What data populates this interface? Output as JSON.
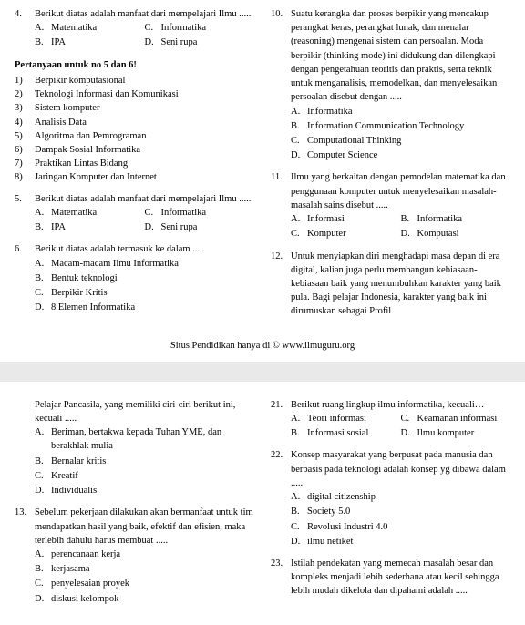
{
  "footer": "Situs Pendidikan hanya di © www.ilmuguru.org",
  "heading56": "Pertanyaan untuk no 5 dan 6!",
  "list56": [
    {
      "n": "1)",
      "t": "Berpikir komputasional"
    },
    {
      "n": "2)",
      "t": "Teknologi Informasi dan Komunikasi"
    },
    {
      "n": "3)",
      "t": "Sistem komputer"
    },
    {
      "n": "4)",
      "t": "Analisis Data"
    },
    {
      "n": "5)",
      "t": "Algoritma dan Pemrograman"
    },
    {
      "n": "6)",
      "t": "Dampak Sosial Informatika"
    },
    {
      "n": "7)",
      "t": "Praktikan Lintas Bidang"
    },
    {
      "n": "8)",
      "t": "Jaringan Komputer dan Internet"
    }
  ],
  "q4": {
    "num": "4.",
    "stem": "Berikut diatas adalah manfaat dari mempelajari Ilmu .....",
    "a": "Matematika",
    "b": "IPA",
    "c": "Informatika",
    "d": "Seni rupa"
  },
  "q5": {
    "num": "5.",
    "stem": "Berikut diatas adalah manfaat dari mempelajari Ilmu .....",
    "a": "Matematika",
    "b": "IPA",
    "c": "Informatika",
    "d": "Seni rupa"
  },
  "q6": {
    "num": "6.",
    "stem": "Berikut diatas adalah termasuk ke dalam .....",
    "a": "Macam-macam Ilmu Informatika",
    "b": "Bentuk teknologi",
    "c": "Berpikir Kritis",
    "d": "8 Elemen Informatika"
  },
  "q10": {
    "num": "10.",
    "stem": "Suatu kerangka dan proses berpikir yang mencakup perangkat keras, perangkat lunak, dan menalar (reasoning) mengenai sistem dan persoalan. Moda berpikir (thinking mode) ini didukung dan dilengkapi dengan pengetahuan teoritis dan praktis, serta teknik untuk menganalisis, memodelkan, dan menyelesaikan persoalan disebut dengan .....",
    "a": "Informatika",
    "b": "Information Communication Technology",
    "c": "Computational Thinking",
    "d": "Computer Science"
  },
  "q11": {
    "num": "11.",
    "stem": "Ilmu yang berkaitan dengan pemodelan matematika dan penggunaan komputer untuk menyelesaikan masalah-masalah sains disebut .....",
    "a": "Informasi",
    "b": "Informatika",
    "c": "Komputer",
    "d": "Komputasi"
  },
  "q12": {
    "num": "12.",
    "stem": "Untuk menyiapkan diri menghadapi masa depan di era digital, kalian juga perlu membangun kebiasaan-kebiasaan baik yang menumbuhkan karakter yang baik pula. Bagi pelajar Indonesia, karakter yang baik ini dirumuskan sebagai Profil"
  },
  "qX": {
    "stem": "Pelajar Pancasila, yang memiliki ciri-ciri berikut ini, kecuali .....",
    "a": "Beriman, bertakwa kepada Tuhan YME, dan berakhlak mulia",
    "b": "Bernalar kritis",
    "c": "Kreatif",
    "d": "Individualis"
  },
  "q13": {
    "num": "13.",
    "stem": "Sebelum pekerjaan dilakukan akan bermanfaat untuk tim mendapatkan hasil yang baik, efektif dan efisien, maka terlebih dahulu harus membuat .....",
    "a": "perencanaan kerja",
    "b": "kerjasama",
    "c": "penyelesaian proyek",
    "d": "diskusi kelompok"
  },
  "q21": {
    "num": "21.",
    "stem": "Berikut ruang lingkup ilmu informatika, kecuali…",
    "a": "Teori informasi",
    "b": "Informasi sosial",
    "c": "Keamanan informasi",
    "d": "Ilmu komputer"
  },
  "q22": {
    "num": "22.",
    "stem": "Konsep masyarakat yang berpusat pada manusia dan berbasis pada teknologi adalah konsep yg dibawa dalam .....",
    "a": "digital citizenship",
    "b": "Society 5.0",
    "c": "Revolusi Industri 4.0",
    "d": "ilmu netiket"
  },
  "q23": {
    "num": "23.",
    "stem": "Istilah pendekatan yang memecah masalah besar dan kompleks menjadi lebih sederhana atau kecil sehingga lebih mudah dikelola dan dipahami adalah ....."
  },
  "labels": {
    "A": "A.",
    "B": "B.",
    "C": "C.",
    "D": "D."
  }
}
